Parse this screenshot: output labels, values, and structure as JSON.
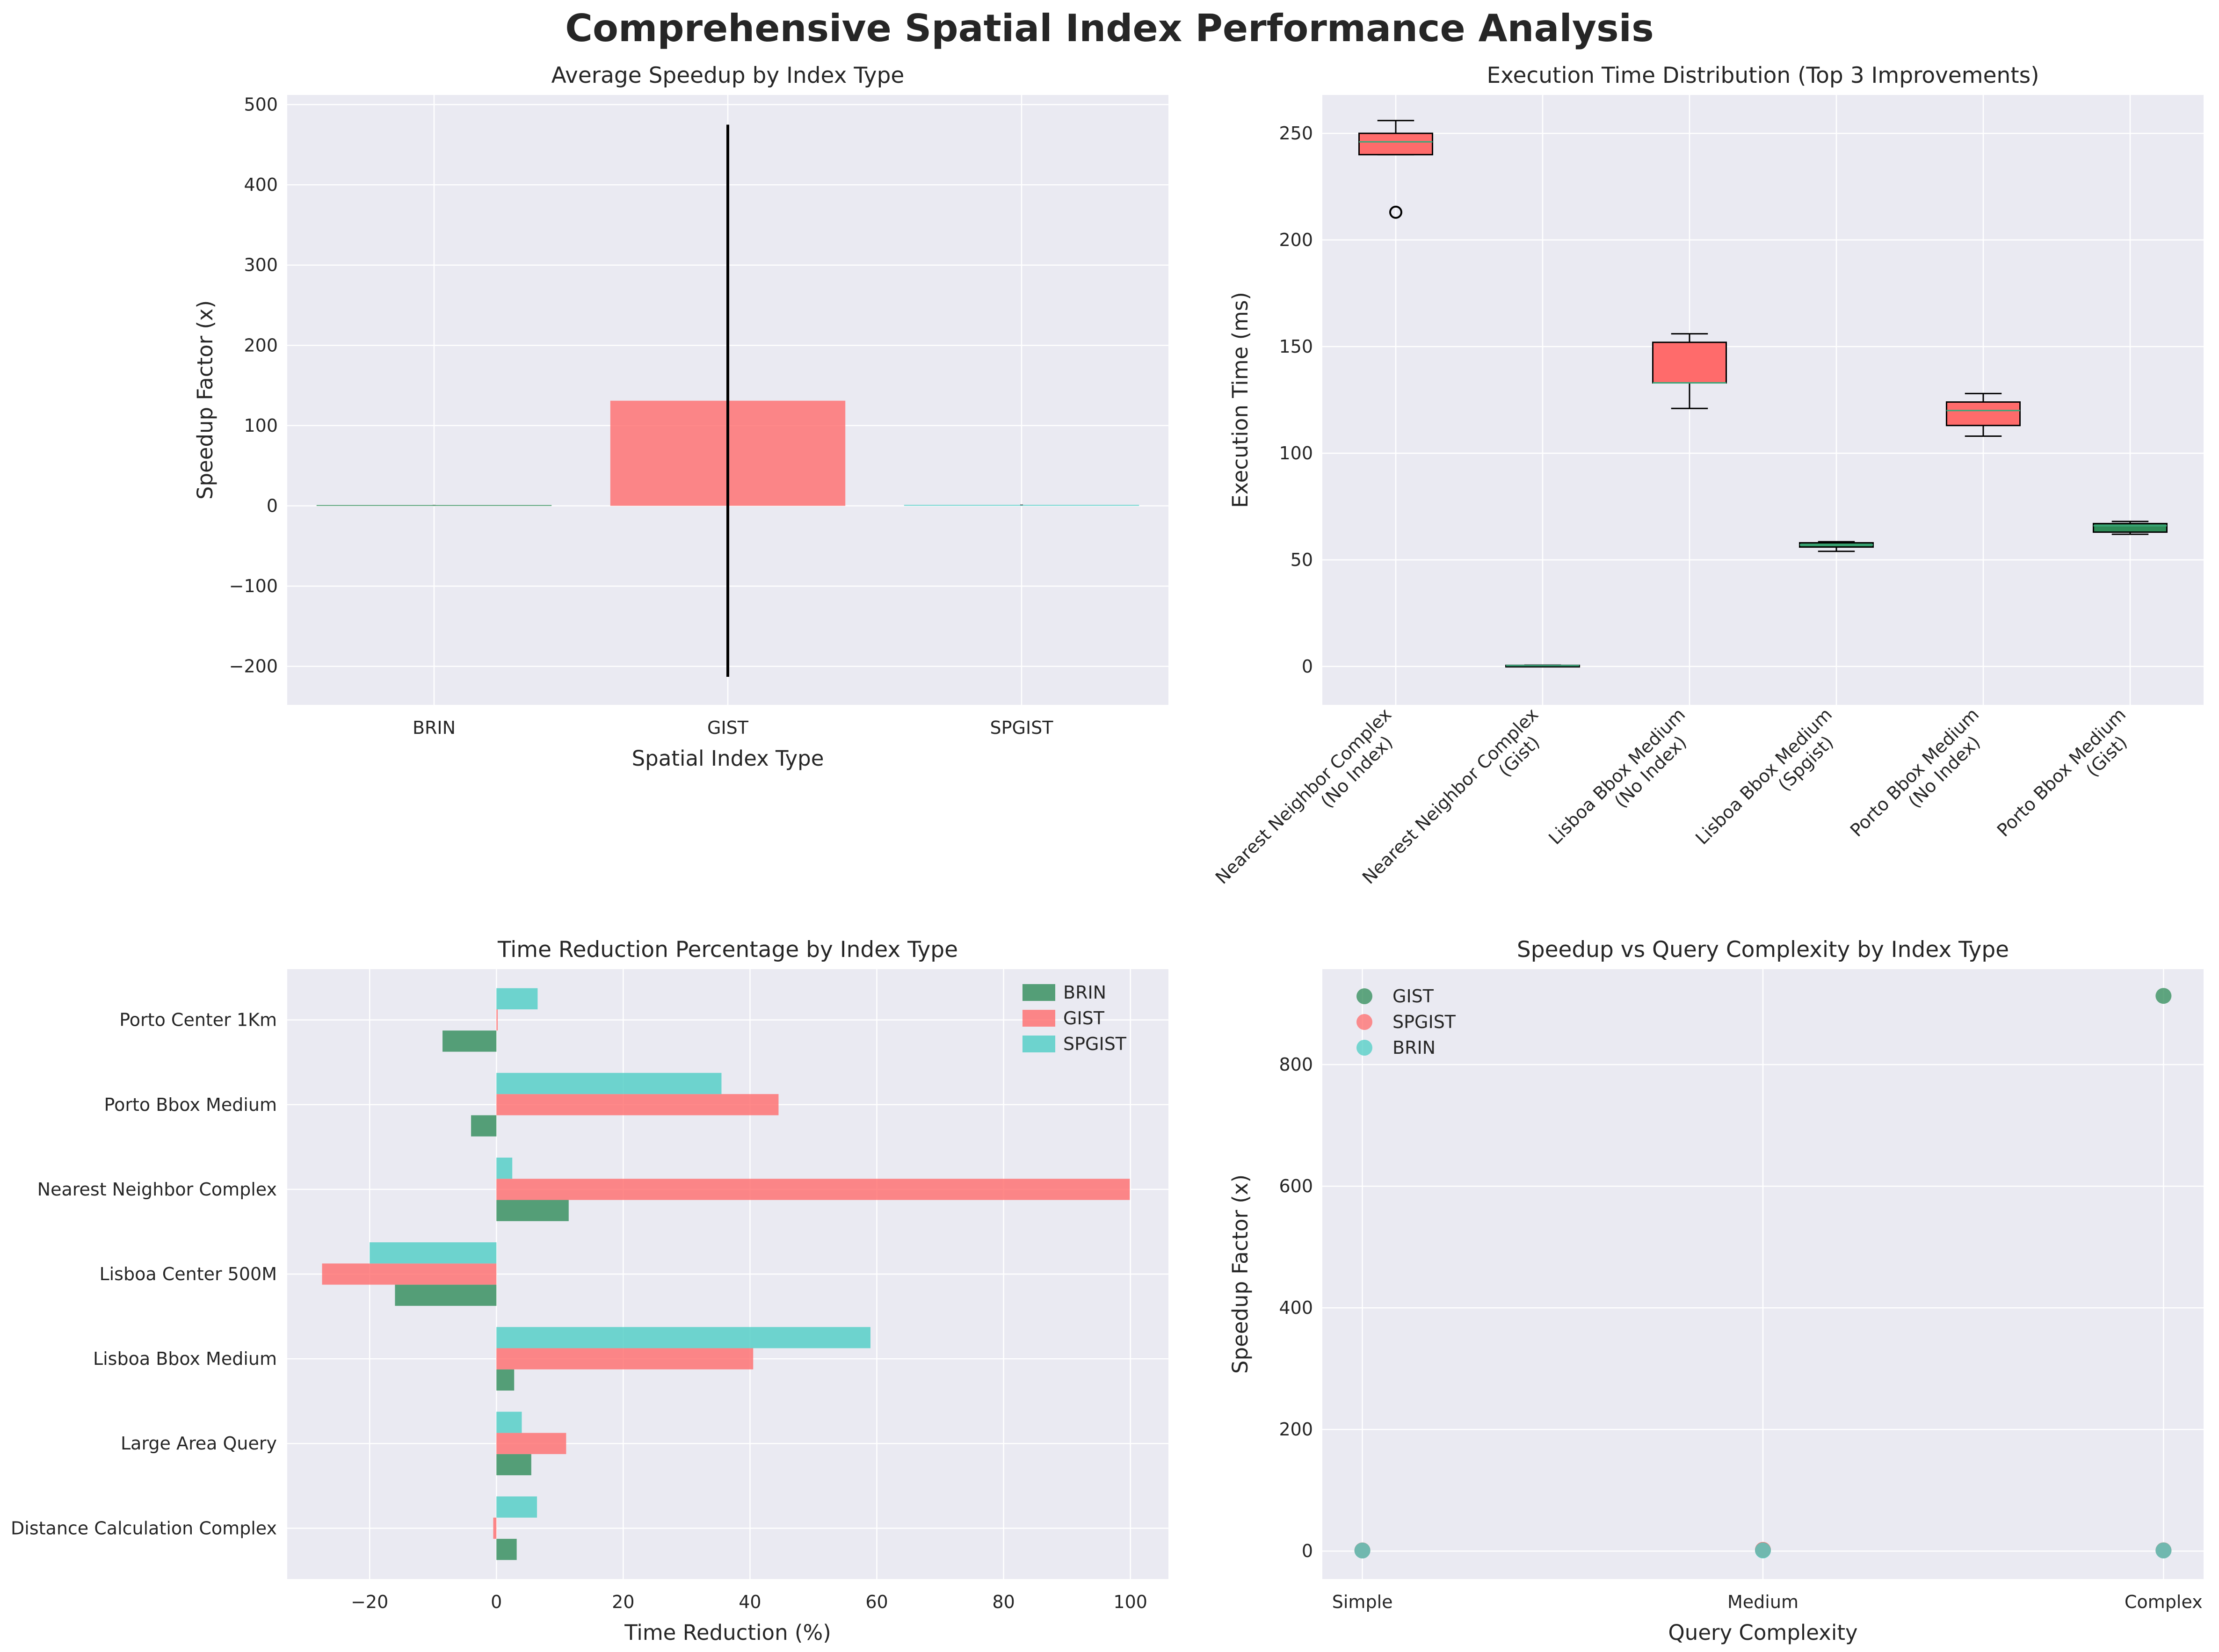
{
  "figure": {
    "suptitle": "Comprehensive Spatial Index Performance Analysis",
    "background": "#ffffff",
    "axes_facecolor": "#eaeaf2",
    "grid_color": "#ffffff"
  },
  "chart_data": [
    {
      "id": "speedup",
      "type": "bar",
      "title": "Average Speedup by Index Type",
      "xlabel": "Spatial Index Type",
      "ylabel": "Speedup Factor (x)",
      "categories": [
        "BRIN",
        "GIST",
        "SPGIST"
      ],
      "values": [
        1.0,
        131.0,
        1.2
      ],
      "error": [
        0.1,
        344.0,
        0.3
      ],
      "colors": [
        "#2e8b57",
        "#ff6b6b",
        "#4ecdc4"
      ],
      "ylim": [
        -248,
        512
      ],
      "yticks": [
        -200,
        -100,
        0,
        100,
        200,
        300,
        400,
        500
      ],
      "grid": true
    },
    {
      "id": "exec_time",
      "type": "box",
      "title": "Execution Time Distribution (Top 3 Improvements)",
      "xlabel": "",
      "ylabel": "Execution Time (ms)",
      "categories": [
        [
          "Nearest Neighbor Complex",
          "(No Index)"
        ],
        [
          "Nearest Neighbor Complex",
          "(Gist)"
        ],
        [
          "Lisboa Bbox Medium",
          "(No Index)"
        ],
        [
          "Lisboa Bbox Medium",
          "(Spgist)"
        ],
        [
          "Porto Bbox Medium",
          "(No Index)"
        ],
        [
          "Porto Bbox Medium",
          "(Gist)"
        ]
      ],
      "boxes": [
        {
          "whislo": 240,
          "q1": 240,
          "med": 246,
          "q3": 250,
          "whishi": 256,
          "fliers": [
            213
          ],
          "color": "#ff6b6b"
        },
        {
          "whislo": 0.2,
          "q1": 0.3,
          "med": 0.4,
          "q3": 0.5,
          "whishi": 0.6,
          "fliers": [],
          "color": "#2e8b57"
        },
        {
          "whislo": 121,
          "q1": 133,
          "med": 133,
          "q3": 152,
          "whishi": 156,
          "fliers": [],
          "color": "#ff6b6b"
        },
        {
          "whislo": 54,
          "q1": 56,
          "med": 57,
          "q3": 58,
          "whishi": 58.5,
          "fliers": [],
          "color": "#2e8b57"
        },
        {
          "whislo": 108,
          "q1": 113,
          "med": 120,
          "q3": 124,
          "whishi": 128,
          "fliers": [],
          "color": "#ff6b6b"
        },
        {
          "whislo": 62,
          "q1": 63,
          "med": 66,
          "q3": 67,
          "whishi": 68,
          "fliers": [],
          "color": "#2e8b57"
        }
      ],
      "ylim": [
        -18,
        268
      ],
      "yticks": [
        0,
        50,
        100,
        150,
        200,
        250
      ],
      "grid": true
    },
    {
      "id": "time_reduction",
      "type": "bar",
      "orientation": "horizontal",
      "title": "Time Reduction Percentage by Index Type",
      "xlabel": "Time Reduction (%)",
      "ylabel": "",
      "categories": [
        "Distance Calculation Complex",
        "Large Area Query",
        "Lisboa Bbox Medium",
        "Lisboa Center 500M",
        "Nearest Neighbor Complex",
        "Porto Bbox Medium",
        "Porto Center 1Km"
      ],
      "series": [
        {
          "name": "BRIN",
          "color": "#2e8b57",
          "values": [
            3.2,
            5.5,
            2.8,
            -16.0,
            11.4,
            -4.0,
            -8.5
          ]
        },
        {
          "name": "GIST",
          "color": "#ff6b6b",
          "values": [
            -0.5,
            11.0,
            40.5,
            -27.5,
            99.9,
            44.5,
            0.2
          ]
        },
        {
          "name": "SPGIST",
          "color": "#4ecdc4",
          "values": [
            6.4,
            4.0,
            59.0,
            -20.0,
            2.5,
            35.5,
            6.5
          ]
        }
      ],
      "xlim": [
        -33,
        106
      ],
      "xticks": [
        -20,
        0,
        20,
        40,
        60,
        80,
        100
      ],
      "legend": "top-right",
      "grid": true
    },
    {
      "id": "complexity",
      "type": "scatter",
      "title": "Speedup vs Query Complexity by Index Type",
      "xlabel": "Query Complexity",
      "ylabel": "Speedup Factor (x)",
      "categories": [
        "Simple",
        "Medium",
        "Complex"
      ],
      "series": [
        {
          "name": "GIST",
          "color": "#2e8b57",
          "points": [
            [
              0,
              1.0
            ],
            [
              1,
              1.6
            ],
            [
              2,
              913.0
            ],
            [
              2,
              1.2
            ]
          ]
        },
        {
          "name": "SPGIST",
          "color": "#ff6b6b",
          "points": [
            [
              0,
              1.1
            ],
            [
              1,
              2.0
            ],
            [
              2,
              1.1
            ]
          ]
        },
        {
          "name": "BRIN",
          "color": "#4ecdc4",
          "points": [
            [
              0,
              0.9
            ],
            [
              1,
              1.0
            ],
            [
              2,
              0.9
            ]
          ]
        }
      ],
      "ylim": [
        -46,
        957
      ],
      "yticks": [
        0,
        200,
        400,
        600,
        800
      ],
      "legend": "top-left",
      "grid": true
    }
  ]
}
